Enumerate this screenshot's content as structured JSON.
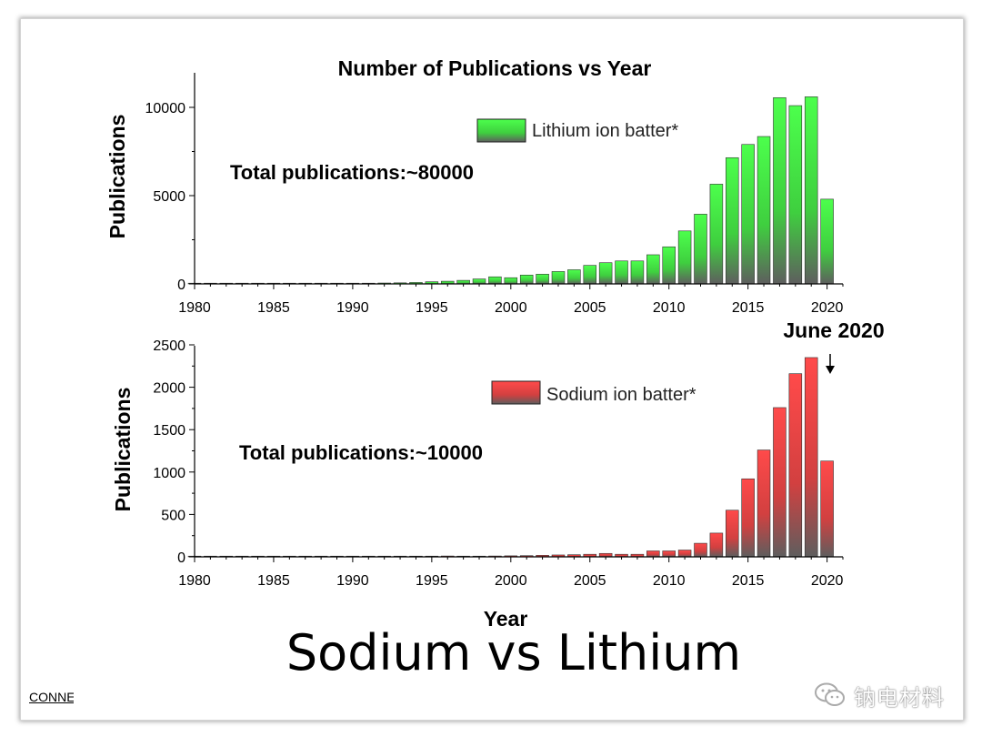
{
  "slide": {
    "title": "Sodium vs Lithium",
    "footer_link": "CONNE",
    "watermark": {
      "icon": "wechat-bubble-icon",
      "text": "钠电材料"
    }
  },
  "chart_data": [
    {
      "type": "bar",
      "title": "Number of Publications vs Year",
      "ylabel": "Publications",
      "xlabel": "",
      "xlim": [
        1980,
        2021
      ],
      "ylim": [
        0,
        11000
      ],
      "xticks": [
        "1980",
        "1985",
        "1990",
        "1995",
        "2000",
        "2005",
        "2010",
        "2015",
        "2020"
      ],
      "yticks": [
        "0",
        "5000",
        "10000"
      ],
      "grid": false,
      "legend_position": "top-right",
      "annotation": "Total publications:~80000",
      "color_top": "#4cff4c",
      "color_bottom": "#5e5e5e",
      "series": [
        {
          "name": "Lithium ion batter*",
          "x": [
            1980,
            1981,
            1982,
            1983,
            1984,
            1985,
            1986,
            1987,
            1988,
            1989,
            1990,
            1991,
            1992,
            1993,
            1994,
            1995,
            1996,
            1997,
            1998,
            1999,
            2000,
            2001,
            2002,
            2003,
            2004,
            2005,
            2006,
            2007,
            2008,
            2009,
            2010,
            2011,
            2012,
            2013,
            2014,
            2015,
            2016,
            2017,
            2018,
            2019,
            2020
          ],
          "values": [
            10,
            10,
            15,
            20,
            25,
            20,
            20,
            25,
            30,
            30,
            35,
            40,
            50,
            60,
            80,
            120,
            150,
            200,
            280,
            400,
            350,
            500,
            550,
            700,
            800,
            1050,
            1200,
            1300,
            1300,
            1650,
            2100,
            3000,
            3950,
            5650,
            7150,
            7900,
            8350,
            10550,
            10100,
            10600,
            4800
          ]
        }
      ]
    },
    {
      "type": "bar",
      "title": "",
      "ylabel": "Publications",
      "xlabel": "Year",
      "xlim": [
        1980,
        2021
      ],
      "ylim": [
        0,
        2500
      ],
      "xticks": [
        "1980",
        "1985",
        "1990",
        "1995",
        "2000",
        "2005",
        "2010",
        "2015",
        "2020"
      ],
      "yticks": [
        "0",
        "500",
        "1000",
        "1500",
        "2000",
        "2500"
      ],
      "grid": false,
      "legend_position": "top-right",
      "annotation": "Total publications:~10000",
      "marker_label": "June 2020",
      "color_top": "#ff4a4a",
      "color_bottom": "#5e5e5e",
      "series": [
        {
          "name": "Sodium ion batter*",
          "x": [
            1980,
            1981,
            1982,
            1983,
            1984,
            1985,
            1986,
            1987,
            1988,
            1989,
            1990,
            1991,
            1992,
            1993,
            1994,
            1995,
            1996,
            1997,
            1998,
            1999,
            2000,
            2001,
            2002,
            2003,
            2004,
            2005,
            2006,
            2007,
            2008,
            2009,
            2010,
            2011,
            2012,
            2013,
            2014,
            2015,
            2016,
            2017,
            2018,
            2019,
            2020
          ],
          "values": [
            3,
            2,
            3,
            5,
            8,
            6,
            5,
            5,
            5,
            5,
            4,
            5,
            5,
            6,
            6,
            8,
            10,
            8,
            8,
            10,
            12,
            14,
            18,
            22,
            25,
            30,
            40,
            30,
            30,
            70,
            70,
            80,
            160,
            280,
            550,
            920,
            1260,
            1760,
            2160,
            2350,
            1130
          ]
        }
      ]
    }
  ]
}
